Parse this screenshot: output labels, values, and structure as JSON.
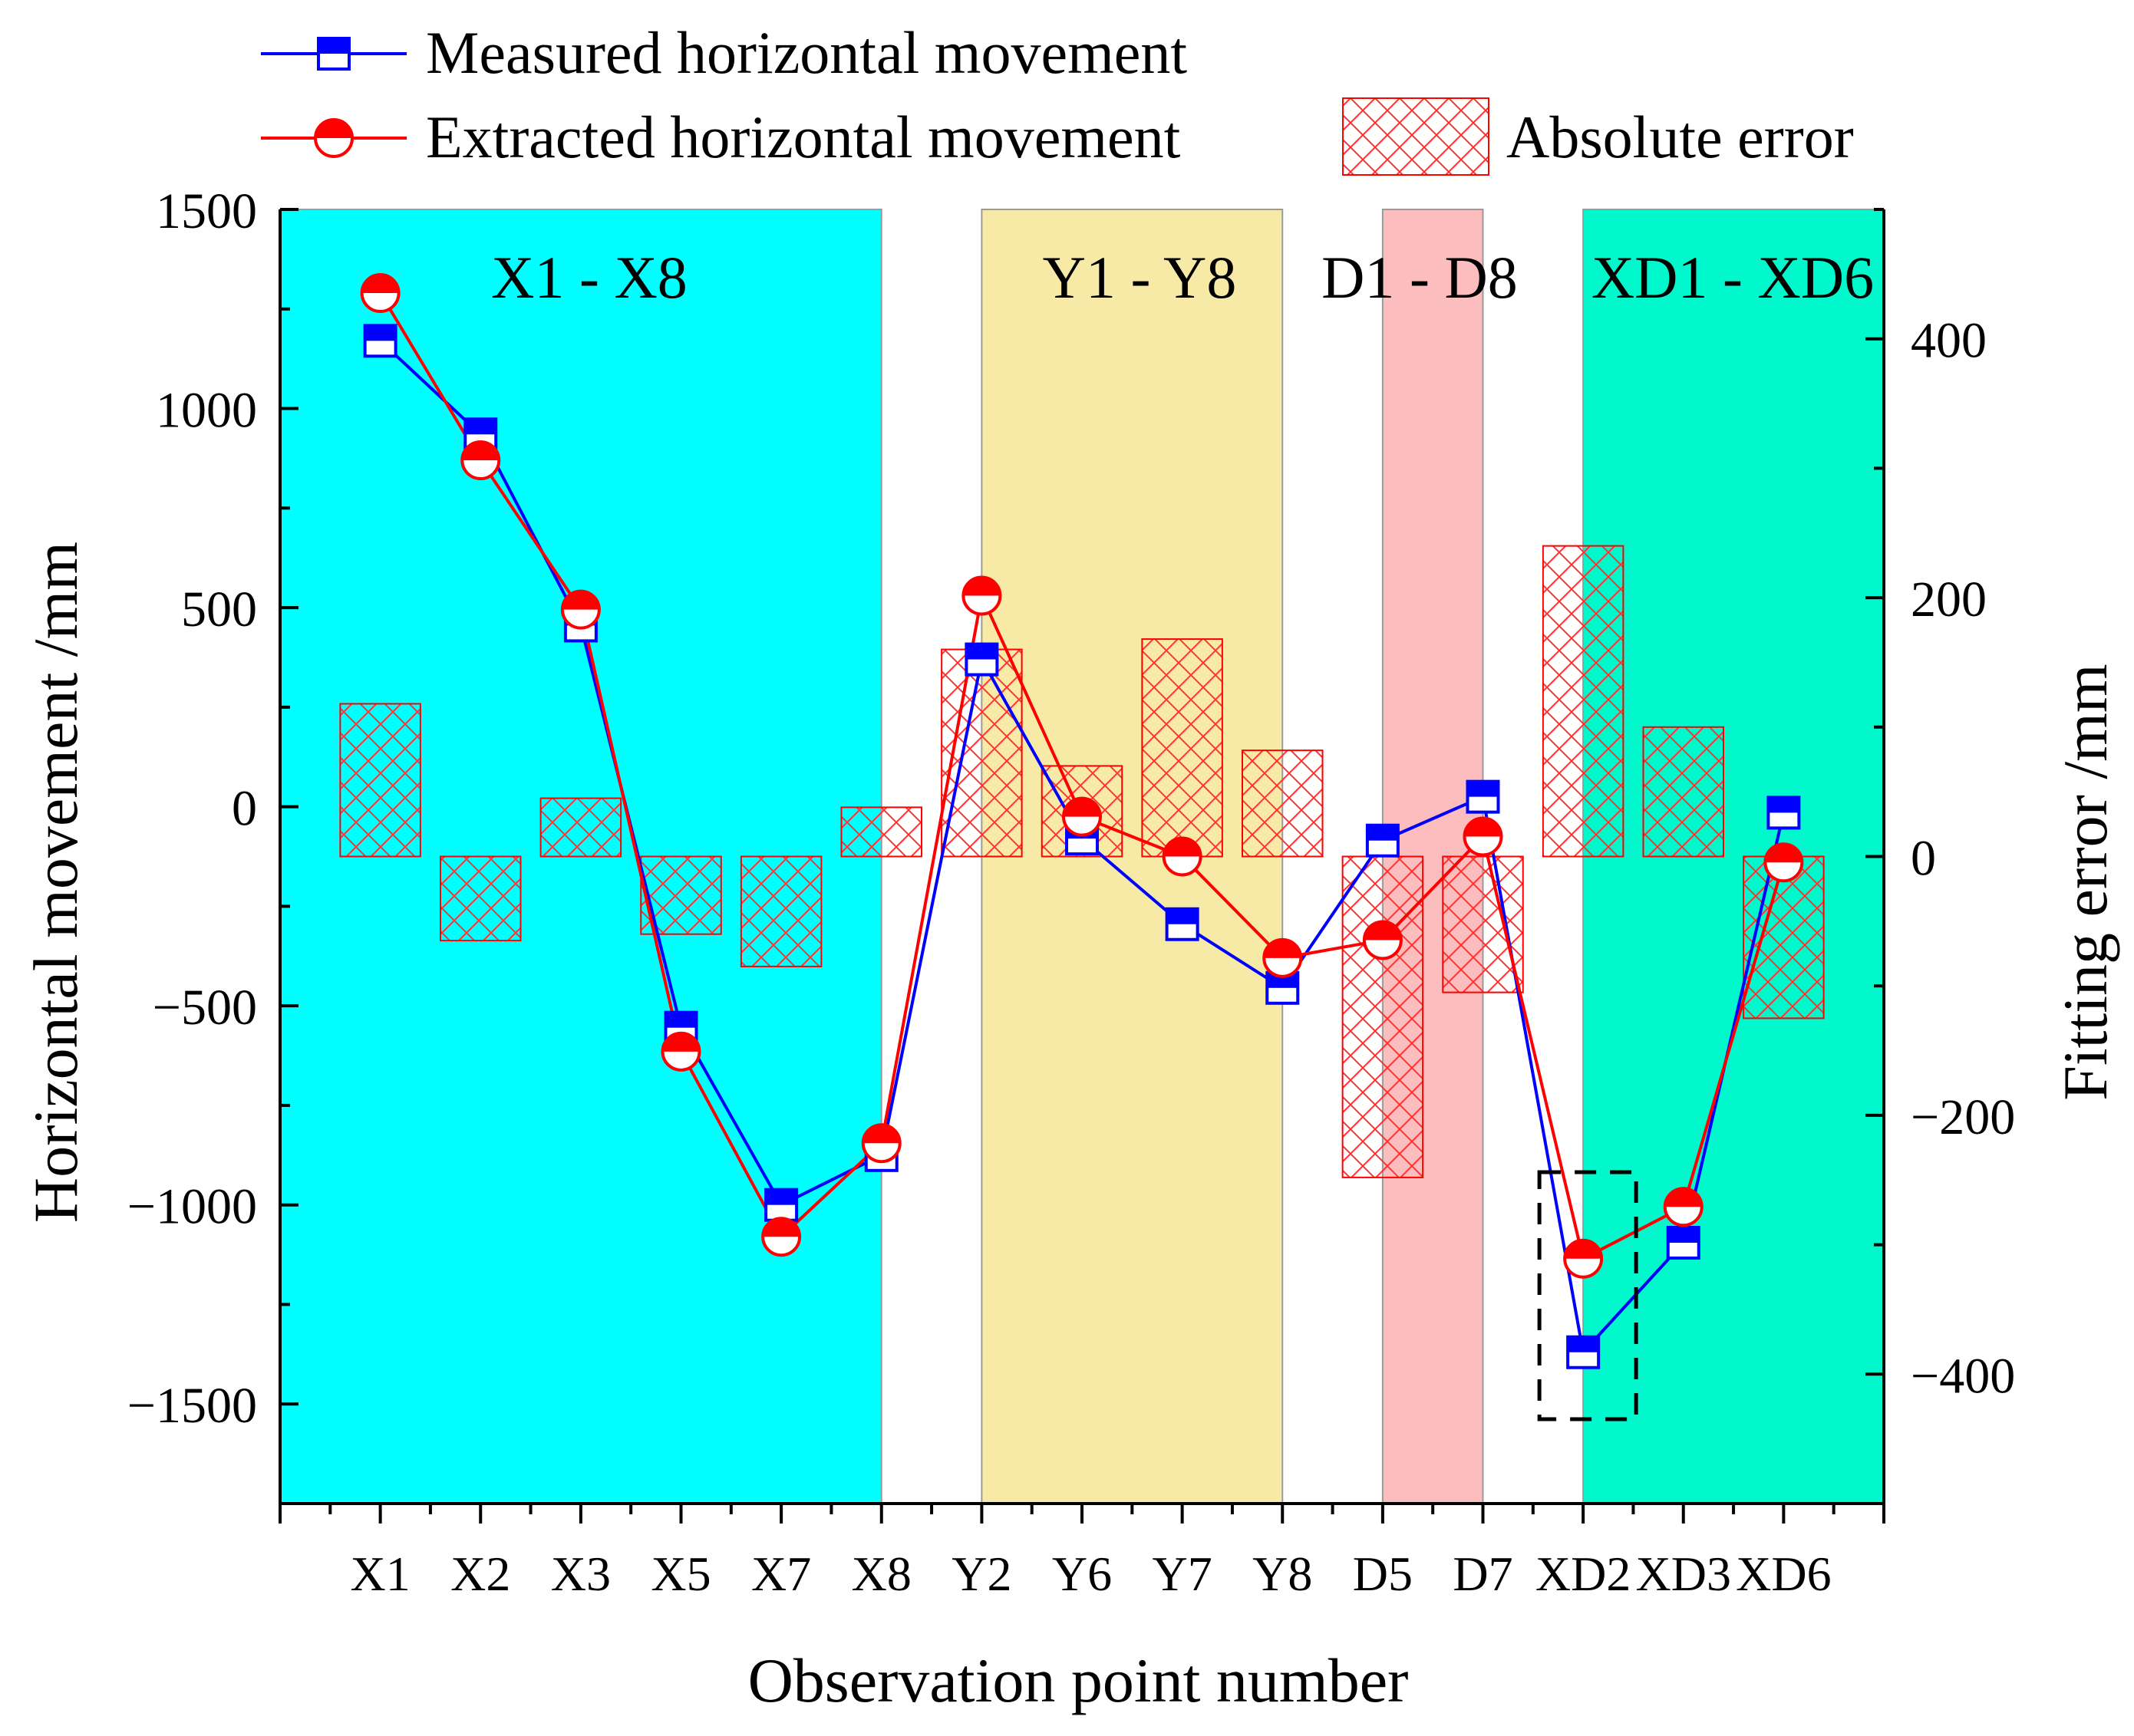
{
  "chart_data": {
    "type": "line",
    "xlabel": "Observation point number",
    "ylabel": "Horizontal movement /mm",
    "y2label": "Fitting error /mm",
    "categories": [
      "X1",
      "X2",
      "X3",
      "X5",
      "X7",
      "X8",
      "Y2",
      "Y6",
      "Y7",
      "Y8",
      "D5",
      "D7",
      "XD2",
      "XD3",
      "XD6"
    ],
    "ylim": [
      -1750,
      1500
    ],
    "yticks": [
      -1500,
      -1000,
      -500,
      0,
      500,
      1000,
      1500
    ],
    "y2lim": [
      -500,
      500
    ],
    "y2ticks": [
      -400,
      -200,
      0,
      200,
      400
    ],
    "series": [
      {
        "name": "Measured horizontal movement",
        "color": "#0000ff",
        "marker": "square",
        "values": [
          1170,
          935,
          455,
          -555,
          -1000,
          -875,
          370,
          -80,
          -295,
          -455,
          -85,
          25,
          -1370,
          -1095,
          -15
        ]
      },
      {
        "name": "Extracted horizontal movement",
        "color": "#ff0000",
        "marker": "circle",
        "values": [
          1290,
          870,
          495,
          -615,
          -1080,
          -845,
          530,
          -25,
          -125,
          -380,
          -335,
          -75,
          -1135,
          -1005,
          -140
        ]
      }
    ],
    "bars": {
      "name": "Absolute error",
      "axis": "right",
      "color": "#ff0000",
      "hatch": "crosshatch",
      "values": [
        118,
        -65,
        45,
        -60,
        -85,
        38,
        160,
        70,
        168,
        82,
        -248,
        -105,
        240,
        100,
        -125
      ]
    },
    "regions": [
      {
        "label": "X1 - X8",
        "color": "#00ffff",
        "start": "X1",
        "end": "X8"
      },
      {
        "label": "Y1 - Y8",
        "color": "#f7eaa7",
        "start": "Y2",
        "end": "Y8"
      },
      {
        "label": "D1 - D8",
        "color": "#fbbdbd",
        "start": "D5",
        "end": "D7"
      },
      {
        "label": "XD1 - XD6",
        "color": "#00f8cc",
        "start": "XD2",
        "end": "XD6"
      }
    ],
    "legend": [
      "Measured horizontal movement",
      "Extracted horizontal movement",
      "Absolute error"
    ],
    "legend_position": "top",
    "highlight_box": "XD2"
  }
}
